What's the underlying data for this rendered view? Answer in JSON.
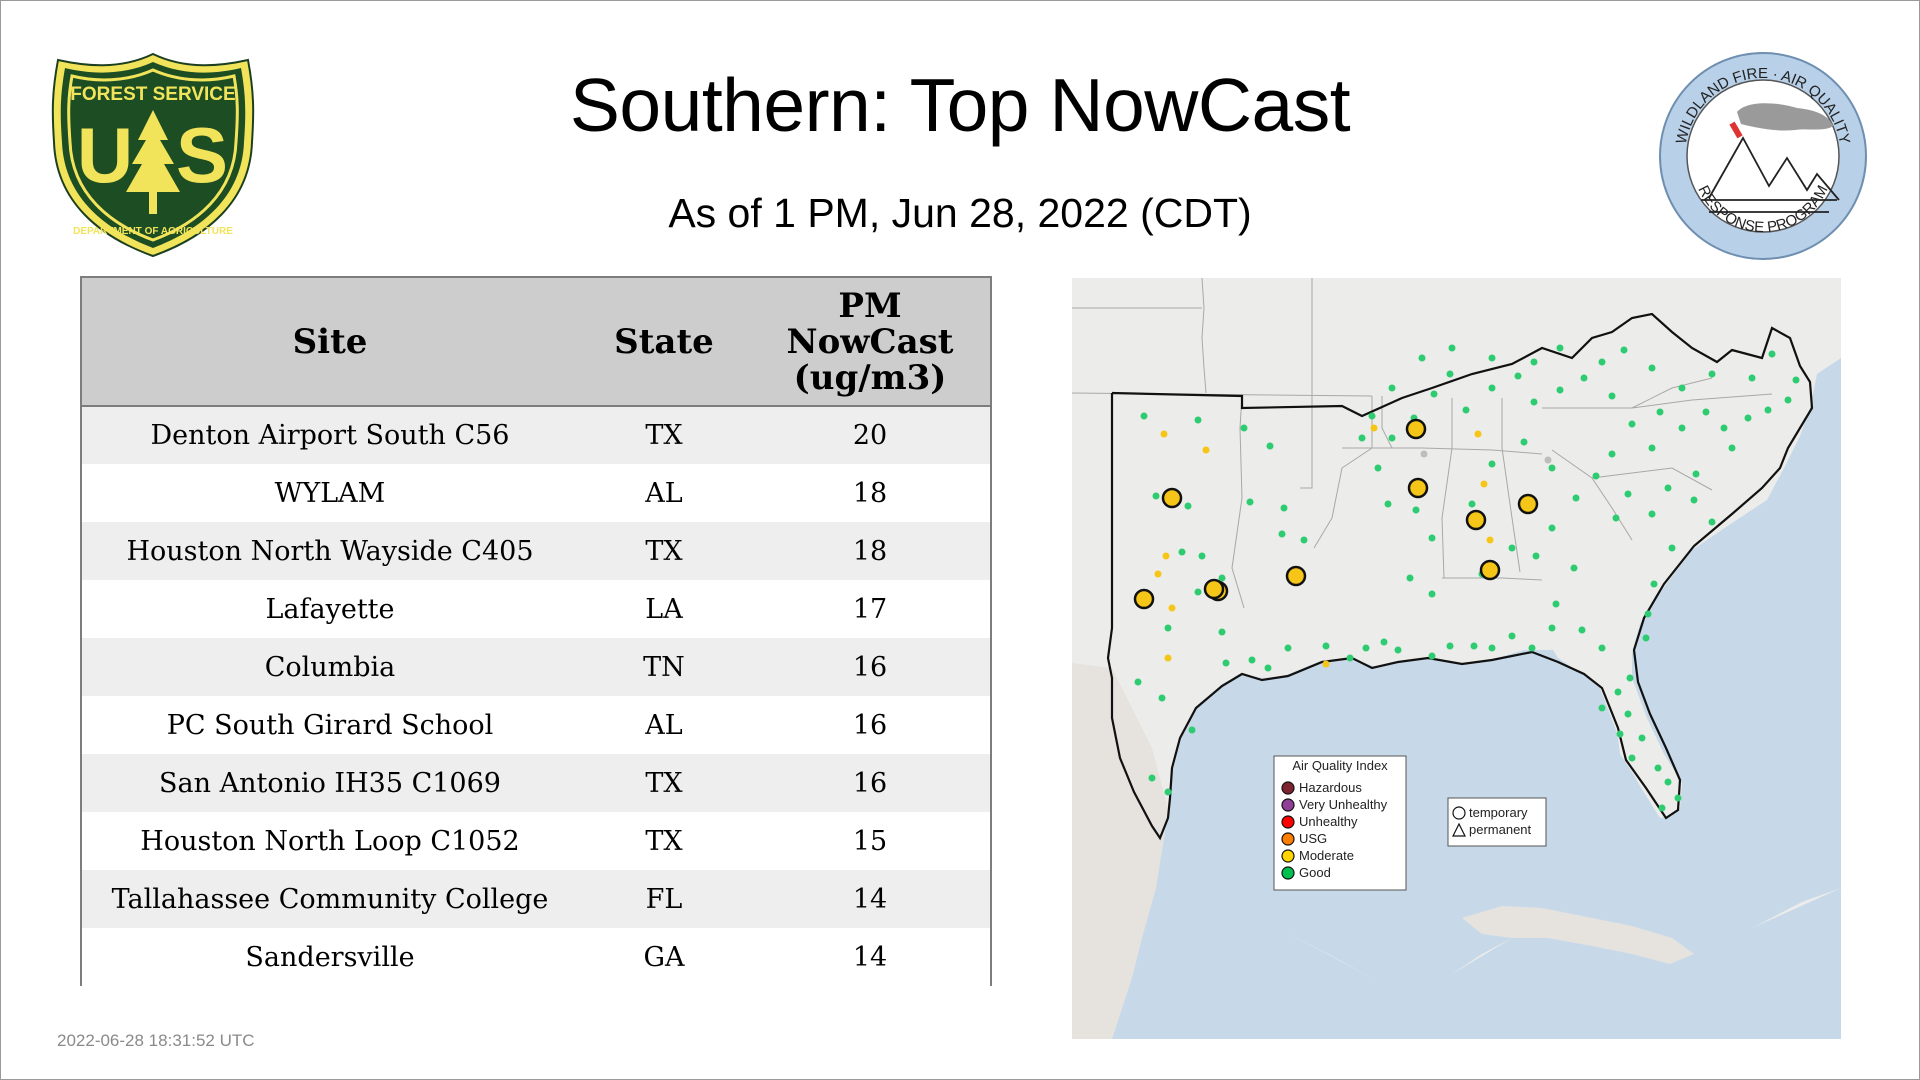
{
  "title": "Southern: Top NowCast",
  "subtitle": "As of  1 PM, Jun 28, 2022 (CDT)",
  "timestamp": "2022-06-28 18:31:52 UTC",
  "logos": {
    "forest_service": {
      "top_text": "FOREST SERVICE",
      "bottom_text": "DEPARTMENT OF AGRICULTURE",
      "letters_left": "U",
      "letters_right": "S"
    },
    "wfar": {
      "top_text": "WILDLAND FIRE · AIR QUALITY",
      "bottom_text": "RESPONSE PROGRAM"
    }
  },
  "table": {
    "headers": {
      "site": "Site",
      "state": "State",
      "value_line1": "PM",
      "value_line2": "NowCast",
      "value_line3": "(ug/m3)"
    },
    "rows": [
      {
        "site": "Denton Airport South C56",
        "state": "TX",
        "value": "20"
      },
      {
        "site": "WYLAM",
        "state": "AL",
        "value": "18"
      },
      {
        "site": "Houston North Wayside C405",
        "state": "TX",
        "value": "18"
      },
      {
        "site": "Lafayette",
        "state": "LA",
        "value": "17"
      },
      {
        "site": "Columbia",
        "state": "TN",
        "value": "16"
      },
      {
        "site": "PC South Girard School",
        "state": "AL",
        "value": "16"
      },
      {
        "site": "San Antonio IH35 C1069",
        "state": "TX",
        "value": "16"
      },
      {
        "site": "Houston North Loop C1052",
        "state": "TX",
        "value": "15"
      },
      {
        "site": "Tallahassee Community College",
        "state": "FL",
        "value": "14"
      },
      {
        "site": "Sandersville",
        "state": "GA",
        "value": "14"
      }
    ]
  },
  "map": {
    "colors": {
      "ocean": "#c7d9e8",
      "land": "#ececea",
      "good": "#2ecc71",
      "moderate": "#f5c518",
      "gray": "#bdbdbd"
    },
    "legend": {
      "title": "Air Quality Index",
      "items": [
        {
          "label": "Hazardous",
          "color": "#7e2430"
        },
        {
          "label": "Very Unhealthy",
          "color": "#8f3f97"
        },
        {
          "label": "Unhealthy",
          "color": "#ff0000"
        },
        {
          "label": "USG",
          "color": "#ff7e00"
        },
        {
          "label": "Moderate",
          "color": "#ffd500"
        },
        {
          "label": "Good",
          "color": "#00c050"
        }
      ]
    },
    "type_legend": {
      "temporary": "temporary",
      "permanent": "permanent"
    }
  }
}
